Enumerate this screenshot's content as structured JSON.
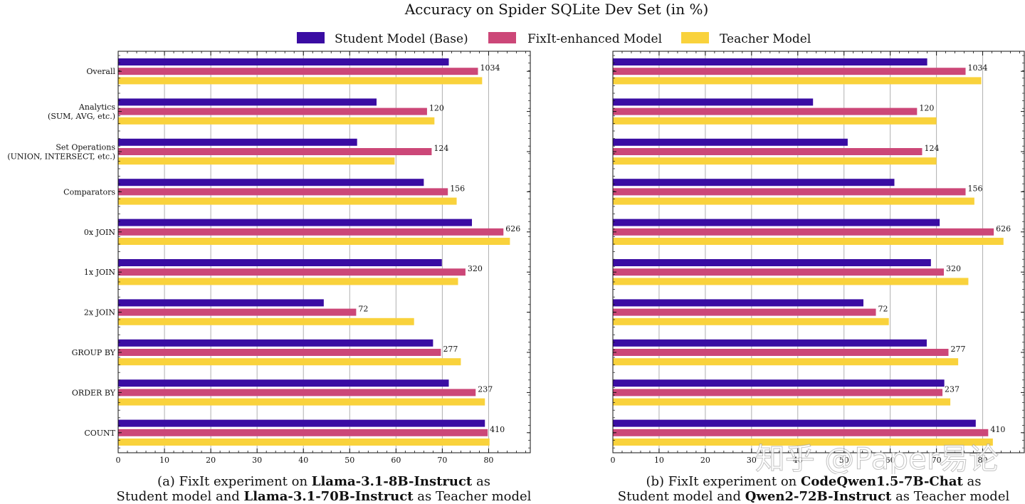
{
  "figure_title": "Accuracy on Spider SQLite Dev Set (in %)",
  "watermark": "知乎 @Paper易论",
  "legend": [
    {
      "name": "Student Model (Base)",
      "color": "#3a0ca3"
    },
    {
      "name": "FixIt-enhanced Model",
      "color": "#cc4778"
    },
    {
      "name": "Teacher Model",
      "color": "#f9d23c"
    }
  ],
  "captions": [
    {
      "prefix": "(a) FixIt experiment on ",
      "student": "Llama-3.1-8B-Instruct",
      "mid1": " as",
      "mid2": "Student model and ",
      "teacher": "Llama-3.1-70B-Instruct",
      "suffix": " as Teacher model"
    },
    {
      "prefix": "(b) FixIt experiment on ",
      "student": "CodeQwen1.5-7B-Chat",
      "mid1": " as",
      "mid2": "Student model and ",
      "teacher": "Qwen2-72B-Instruct",
      "suffix": " as Teacher model"
    }
  ],
  "chart_data": [
    {
      "type": "bar",
      "orientation": "horizontal",
      "title": "",
      "xlabel": "",
      "ylabel": "",
      "xlim": [
        0,
        89
      ],
      "xticks": [
        0,
        10,
        20,
        30,
        40,
        50,
        60,
        70,
        80
      ],
      "grid": "vertical",
      "categories": [
        [
          "Overall"
        ],
        [
          "Analytics",
          "(SUM, AVG, etc.)"
        ],
        [
          "Set Operations",
          "(UNION, INTERSECT, etc.)"
        ],
        [
          "Comparators"
        ],
        [
          "0x JOIN"
        ],
        [
          "1x JOIN"
        ],
        [
          "2x JOIN"
        ],
        [
          "GROUP BY"
        ],
        [
          "ORDER BY"
        ],
        [
          "COUNT"
        ]
      ],
      "counts": [
        "1034",
        "120",
        "124",
        "156",
        "626",
        "320",
        "72",
        "277",
        "237",
        "410"
      ],
      "series": [
        {
          "name": "Student Model (Base)",
          "values": [
            71.4,
            55.8,
            51.6,
            66.0,
            76.4,
            69.9,
            44.4,
            68.0,
            71.4,
            79.2
          ]
        },
        {
          "name": "FixIt-enhanced Model",
          "values": [
            77.7,
            66.7,
            67.7,
            71.2,
            83.2,
            75.0,
            51.4,
            69.7,
            77.2,
            79.8
          ]
        },
        {
          "name": "Teacher Model",
          "values": [
            78.6,
            68.3,
            59.7,
            73.1,
            84.6,
            73.4,
            63.9,
            74.0,
            79.2,
            80.2
          ]
        }
      ]
    },
    {
      "type": "bar",
      "orientation": "horizontal",
      "title": "",
      "xlabel": "",
      "ylabel": "",
      "xlim": [
        0,
        89
      ],
      "xticks": [
        0,
        10,
        20,
        30,
        40,
        50,
        60,
        70,
        80
      ],
      "grid": "vertical",
      "categories": [
        [
          "Overall"
        ],
        [
          "Analytics",
          "(SUM, AVG, etc.)"
        ],
        [
          "Set Operations",
          "(UNION, INTERSECT, etc.)"
        ],
        [
          "Comparators"
        ],
        [
          "0x JOIN"
        ],
        [
          "1x JOIN"
        ],
        [
          "2x JOIN"
        ],
        [
          "GROUP BY"
        ],
        [
          "ORDER BY"
        ],
        [
          "COUNT"
        ]
      ],
      "counts": [
        "1034",
        "120",
        "124",
        "156",
        "626",
        "320",
        "72",
        "277",
        "237",
        "410"
      ],
      "series": [
        {
          "name": "Student Model (Base)",
          "values": [
            68.0,
            43.3,
            50.8,
            60.9,
            70.7,
            68.8,
            54.2,
            67.9,
            71.7,
            78.5
          ]
        },
        {
          "name": "FixIt-enhanced Model",
          "values": [
            76.3,
            65.8,
            66.9,
            76.3,
            82.4,
            71.6,
            56.9,
            72.6,
            71.3,
            81.2
          ]
        },
        {
          "name": "Teacher Model",
          "values": [
            79.7,
            70.0,
            70.0,
            78.2,
            84.5,
            76.9,
            59.7,
            74.7,
            73.0,
            82.2
          ]
        }
      ]
    }
  ]
}
